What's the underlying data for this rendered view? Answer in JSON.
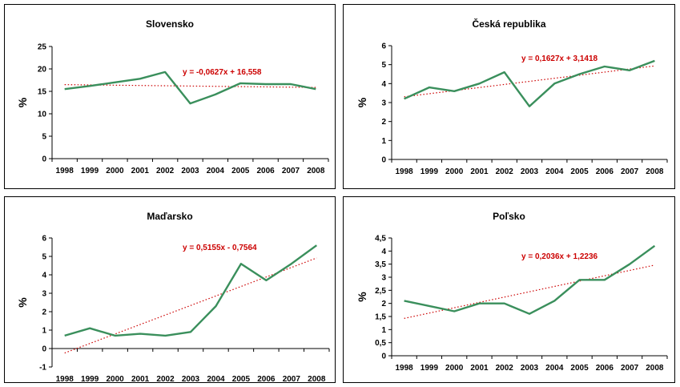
{
  "chart_data": [
    {
      "type": "line",
      "title": "Slovensko",
      "ylabel": "%",
      "x": [
        "1998",
        "1999",
        "2000",
        "2001",
        "2002",
        "2003",
        "2004",
        "2005",
        "2006",
        "2007",
        "2008"
      ],
      "ylim": [
        0,
        25
      ],
      "yticks": [
        "0",
        "5",
        "10",
        "15",
        "20",
        "25"
      ],
      "series": [
        {
          "values": [
            15.5,
            16.2,
            17.0,
            17.8,
            19.3,
            12.3,
            14.3,
            16.8,
            16.6,
            16.6,
            15.5
          ],
          "color": "#3a8f5c"
        }
      ],
      "trendline": {
        "label": "y = -0,0627x + 16,558",
        "slope": -0.0627,
        "intercept": 16.558,
        "color": "#cc0000"
      }
    },
    {
      "type": "line",
      "title": "Česká republika",
      "ylabel": "%",
      "x": [
        "1998",
        "1999",
        "2000",
        "2001",
        "2002",
        "2003",
        "2004",
        "2005",
        "2006",
        "2007",
        "2008"
      ],
      "ylim": [
        0,
        6
      ],
      "yticks": [
        "0",
        "1",
        "2",
        "3",
        "4",
        "5",
        "6"
      ],
      "series": [
        {
          "values": [
            3.2,
            3.8,
            3.6,
            4.0,
            4.6,
            2.8,
            4.0,
            4.5,
            4.9,
            4.7,
            5.2
          ],
          "color": "#3a8f5c"
        }
      ],
      "trendline": {
        "label": "y = 0,1627x + 3,1418",
        "slope": 0.1627,
        "intercept": 3.1418,
        "color": "#cc0000"
      }
    },
    {
      "type": "line",
      "title": "Maďarsko",
      "ylabel": "%",
      "x": [
        "1998",
        "1999",
        "2000",
        "2001",
        "2002",
        "2003",
        "2004",
        "2005",
        "2006",
        "2007",
        "2008"
      ],
      "ylim": [
        -1,
        6
      ],
      "yticks": [
        "-1",
        "0",
        "1",
        "2",
        "3",
        "4",
        "5",
        "6"
      ],
      "series": [
        {
          "values": [
            0.7,
            1.1,
            0.7,
            0.8,
            0.7,
            0.9,
            2.3,
            4.6,
            3.7,
            4.6,
            5.6
          ],
          "color": "#3a8f5c"
        }
      ],
      "trendline": {
        "label": "y = 0,5155x - 0,7564",
        "slope": 0.5155,
        "intercept": -0.7564,
        "color": "#cc0000"
      }
    },
    {
      "type": "line",
      "title": "Poľsko",
      "ylabel": "%",
      "x": [
        "1998",
        "1999",
        "2000",
        "2001",
        "2002",
        "2003",
        "2004",
        "2005",
        "2006",
        "2007",
        "2008"
      ],
      "ylim": [
        0,
        4.5
      ],
      "yticks": [
        "0",
        "0,5",
        "1",
        "1,5",
        "2",
        "2,5",
        "3",
        "3,5",
        "4",
        "4,5"
      ],
      "series": [
        {
          "values": [
            2.1,
            1.9,
            1.7,
            2.0,
            2.0,
            1.6,
            2.1,
            2.9,
            2.9,
            3.5,
            4.2
          ],
          "color": "#3a8f5c"
        }
      ],
      "trendline": {
        "label": "y = 0,2036x + 1,2236",
        "slope": 0.2036,
        "intercept": 1.2236,
        "color": "#cc0000"
      }
    }
  ]
}
